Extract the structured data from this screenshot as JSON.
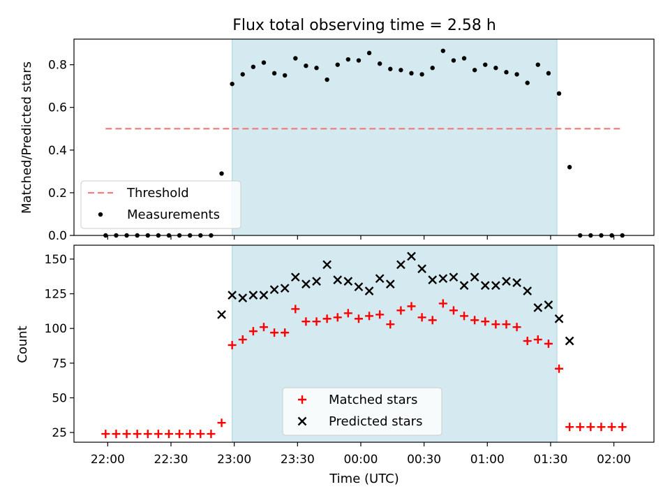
{
  "title": "Flux total observing time = 2.58 h",
  "chart_data": [
    {
      "type": "scatter",
      "panel": "top",
      "xlabel": "",
      "ylabel": "Matched/Predicted stars",
      "ylim": [
        0,
        0.92
      ],
      "yticks": [
        "0.0",
        "0.2",
        "0.4",
        "0.6",
        "0.8"
      ],
      "shaded_interval": [
        "22:59",
        "01:33"
      ],
      "shade_color": "#d4eaf0",
      "threshold": {
        "name": "Threshold",
        "value": 0.5,
        "x_start": "21:59",
        "x_end": "02:04",
        "color": "#f08080",
        "style": "dashed"
      },
      "series": [
        {
          "name": "Measurements",
          "color": "#000000",
          "marker": "dot",
          "x": [
            "21:59",
            "22:04",
            "22:09",
            "22:14",
            "22:19",
            "22:24",
            "22:29",
            "22:34",
            "22:39",
            "22:44",
            "22:49",
            "22:54",
            "22:59",
            "23:04",
            "23:09",
            "23:14",
            "23:19",
            "23:24",
            "23:29",
            "23:34",
            "23:39",
            "23:44",
            "23:49",
            "23:54",
            "23:59",
            "00:04",
            "00:09",
            "00:14",
            "00:19",
            "00:24",
            "00:29",
            "00:34",
            "00:39",
            "00:44",
            "00:49",
            "00:54",
            "00:59",
            "01:04",
            "01:09",
            "01:14",
            "01:19",
            "01:24",
            "01:29",
            "01:34",
            "01:39",
            "01:44",
            "01:49",
            "01:54",
            "01:59",
            "02:04"
          ],
          "values": [
            0,
            0,
            0,
            0,
            0,
            0,
            0,
            0,
            0,
            0,
            0,
            0.29,
            0.71,
            0.755,
            0.79,
            0.81,
            0.76,
            0.75,
            0.83,
            0.795,
            0.785,
            0.73,
            0.8,
            0.825,
            0.82,
            0.855,
            0.805,
            0.78,
            0.775,
            0.76,
            0.755,
            0.785,
            0.865,
            0.82,
            0.83,
            0.775,
            0.8,
            0.785,
            0.765,
            0.755,
            0.715,
            0.8,
            0.76,
            0.665,
            0.32,
            0,
            0,
            0,
            0,
            0
          ]
        }
      ],
      "legend": "lower-left"
    },
    {
      "type": "scatter",
      "panel": "bottom",
      "xlabel": "Time (UTC)",
      "ylabel": "Count",
      "ylim": [
        18,
        160
      ],
      "yticks": [
        "25",
        "50",
        "75",
        "100",
        "125",
        "150"
      ],
      "xticks": [
        "22:00",
        "22:30",
        "23:00",
        "23:30",
        "00:00",
        "00:30",
        "01:00",
        "01:30",
        "02:00"
      ],
      "shaded_interval": [
        "22:59",
        "01:33"
      ],
      "shade_color": "#d4eaf0",
      "series": [
        {
          "name": "Matched stars",
          "color": "#ff0000",
          "marker": "plus",
          "x": [
            "21:59",
            "22:04",
            "22:09",
            "22:14",
            "22:19",
            "22:24",
            "22:29",
            "22:34",
            "22:39",
            "22:44",
            "22:49",
            "22:54",
            "22:59",
            "23:04",
            "23:09",
            "23:14",
            "23:19",
            "23:24",
            "23:29",
            "23:34",
            "23:39",
            "23:44",
            "23:49",
            "23:54",
            "23:59",
            "00:04",
            "00:09",
            "00:14",
            "00:19",
            "00:24",
            "00:29",
            "00:34",
            "00:39",
            "00:44",
            "00:49",
            "00:54",
            "00:59",
            "01:04",
            "01:09",
            "01:14",
            "01:19",
            "01:24",
            "01:29",
            "01:34",
            "01:39",
            "01:44",
            "01:49",
            "01:54",
            "01:59",
            "02:04"
          ],
          "values": [
            24,
            24,
            24,
            24,
            24,
            24,
            24,
            24,
            24,
            24,
            24,
            32,
            88,
            92,
            98,
            101,
            97,
            97,
            114,
            105,
            105,
            107,
            108,
            111,
            107,
            109,
            110,
            103,
            113,
            116,
            108,
            106,
            118,
            113,
            109,
            106,
            105,
            103,
            103,
            101,
            91,
            92,
            89,
            71,
            29,
            29,
            29,
            29,
            29,
            29
          ]
        },
        {
          "name": "Predicted stars",
          "color": "#000000",
          "marker": "x",
          "x": [
            "22:54",
            "22:59",
            "23:04",
            "23:09",
            "23:14",
            "23:19",
            "23:24",
            "23:29",
            "23:34",
            "23:39",
            "23:44",
            "23:49",
            "23:54",
            "23:59",
            "00:04",
            "00:09",
            "00:14",
            "00:19",
            "00:24",
            "00:29",
            "00:34",
            "00:39",
            "00:44",
            "00:49",
            "00:54",
            "00:59",
            "01:04",
            "01:09",
            "01:14",
            "01:19",
            "01:24",
            "01:29",
            "01:34",
            "01:39"
          ],
          "values": [
            110,
            124,
            122,
            124,
            124,
            128,
            129,
            137,
            132,
            134,
            146,
            135,
            134,
            130,
            127,
            136,
            132,
            146,
            152,
            143,
            135,
            136,
            137,
            131,
            137,
            131,
            131,
            134,
            133,
            127,
            115,
            117,
            107,
            91
          ]
        }
      ],
      "legend": "lower-center"
    }
  ]
}
